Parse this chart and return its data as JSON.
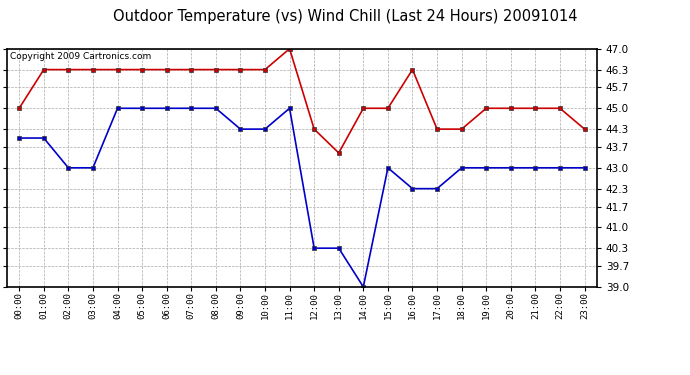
{
  "title": "Outdoor Temperature (vs) Wind Chill (Last 24 Hours) 20091014",
  "copyright_text": "Copyright 2009 Cartronics.com",
  "hours": [
    "00:00",
    "01:00",
    "02:00",
    "03:00",
    "04:00",
    "05:00",
    "06:00",
    "07:00",
    "08:00",
    "09:00",
    "10:00",
    "11:00",
    "12:00",
    "13:00",
    "14:00",
    "15:00",
    "16:00",
    "17:00",
    "18:00",
    "19:00",
    "20:00",
    "21:00",
    "22:00",
    "23:00"
  ],
  "red_data": [
    45.0,
    46.3,
    46.3,
    46.3,
    46.3,
    46.3,
    46.3,
    46.3,
    46.3,
    46.3,
    46.3,
    47.0,
    44.3,
    43.5,
    45.0,
    45.0,
    46.3,
    44.3,
    44.3,
    45.0,
    45.0,
    45.0,
    45.0,
    44.3
  ],
  "blue_data": [
    44.0,
    44.0,
    43.0,
    43.0,
    45.0,
    45.0,
    45.0,
    45.0,
    45.0,
    44.3,
    44.3,
    45.0,
    40.3,
    40.3,
    39.0,
    43.0,
    42.3,
    42.3,
    43.0,
    43.0,
    43.0,
    43.0,
    43.0,
    43.0
  ],
  "red_color": "#cc0000",
  "blue_color": "#0000cc",
  "ylim": [
    39.0,
    47.0
  ],
  "yticks": [
    39.0,
    39.7,
    40.3,
    41.0,
    41.7,
    42.3,
    43.0,
    43.7,
    44.3,
    45.0,
    45.7,
    46.3,
    47.0
  ],
  "background_color": "#ffffff",
  "plot_bg_color": "#ffffff",
  "grid_color": "#aaaaaa",
  "title_fontsize": 10.5,
  "copyright_fontsize": 6.5
}
